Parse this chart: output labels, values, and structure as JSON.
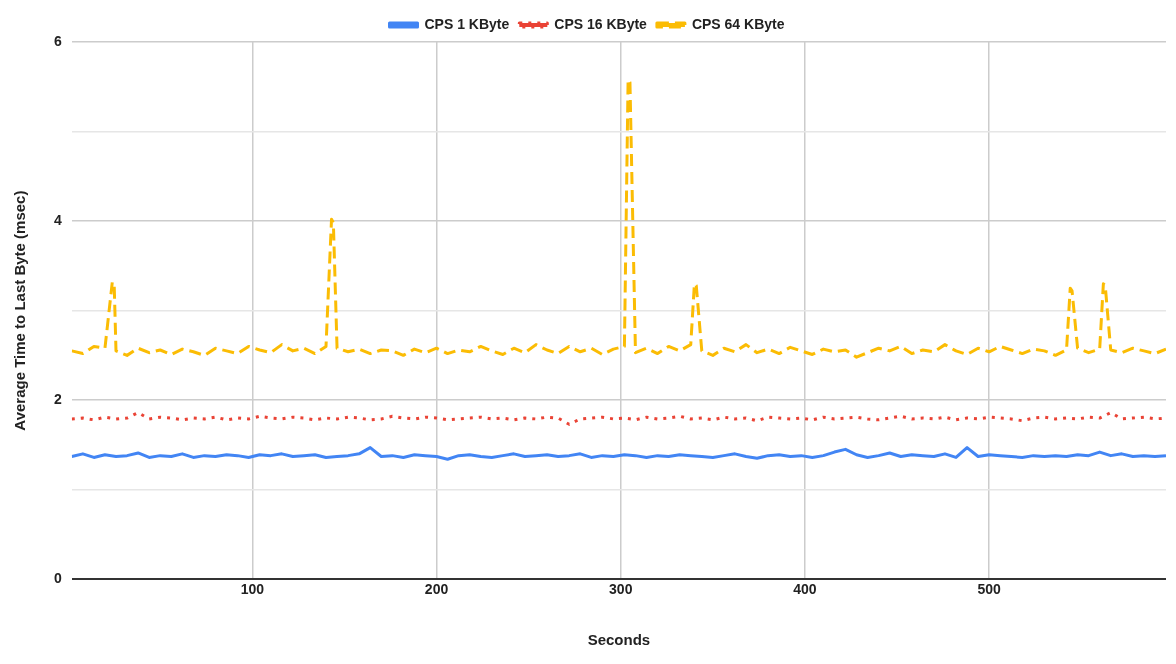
{
  "chart_data": {
    "type": "line",
    "xlabel": "Seconds",
    "ylabel": "Average Time to Last Byte (msec)",
    "x": [
      2,
      8,
      14,
      20,
      26,
      32,
      38,
      44,
      50,
      56,
      62,
      68,
      74,
      80,
      86,
      92,
      98,
      104,
      110,
      116,
      122,
      128,
      134,
      140,
      146,
      152,
      158,
      164,
      170,
      176,
      182,
      188,
      194,
      200,
      206,
      212,
      218,
      224,
      230,
      236,
      242,
      248,
      254,
      260,
      266,
      272,
      278,
      284,
      290,
      296,
      302,
      308,
      314,
      320,
      326,
      332,
      338,
      344,
      350,
      356,
      362,
      368,
      374,
      380,
      386,
      392,
      398,
      404,
      410,
      416,
      422,
      428,
      434,
      440,
      446,
      452,
      458,
      464,
      470,
      476,
      482,
      488,
      494,
      500,
      506,
      512,
      518,
      524,
      530,
      536,
      542,
      548,
      554,
      560,
      566,
      572,
      578,
      584,
      590,
      596
    ],
    "xlim": [
      2,
      596
    ],
    "xticks": [
      100,
      200,
      300,
      400,
      500
    ],
    "ylim": [
      0,
      6
    ],
    "yticks": [
      0,
      {
        "value": 1,
        "label": null
      },
      2,
      {
        "value": 3,
        "label": null
      },
      4,
      {
        "value": 5,
        "label": null
      },
      6
    ],
    "grid": true,
    "legend": "top",
    "marker": "none",
    "series": [
      {
        "name": "CPS 1 KByte",
        "color": "#4285f4",
        "line_style": "solid",
        "values": [
          1.37,
          1.4,
          1.36,
          1.39,
          1.37,
          1.38,
          1.41,
          1.36,
          1.38,
          1.37,
          1.4,
          1.36,
          1.38,
          1.37,
          1.39,
          1.38,
          1.36,
          1.39,
          1.38,
          1.4,
          1.37,
          1.38,
          1.39,
          1.36,
          1.37,
          1.38,
          1.4,
          1.47,
          1.37,
          1.38,
          1.36,
          1.39,
          1.38,
          1.37,
          1.34,
          1.38,
          1.39,
          1.37,
          1.36,
          1.38,
          1.4,
          1.37,
          1.38,
          1.39,
          1.37,
          1.38,
          1.4,
          1.36,
          1.38,
          1.37,
          1.39,
          1.38,
          1.36,
          1.38,
          1.37,
          1.39,
          1.38,
          1.37,
          1.36,
          1.38,
          1.4,
          1.37,
          1.35,
          1.38,
          1.39,
          1.37,
          1.38,
          1.36,
          1.38,
          1.42,
          1.45,
          1.39,
          1.36,
          1.38,
          1.41,
          1.37,
          1.39,
          1.38,
          1.37,
          1.4,
          1.36,
          1.47,
          1.37,
          1.39,
          1.38,
          1.37,
          1.36,
          1.38,
          1.37,
          1.38,
          1.37,
          1.39,
          1.38,
          1.42,
          1.38,
          1.4,
          1.37,
          1.38,
          1.37,
          1.38
        ]
      },
      {
        "name": "CPS 16 KByte",
        "color": "#ea4335",
        "line_style": "dotted",
        "values": [
          1.79,
          1.8,
          1.78,
          1.81,
          1.79,
          1.8,
          1.86,
          1.79,
          1.81,
          1.8,
          1.78,
          1.8,
          1.79,
          1.81,
          1.78,
          1.8,
          1.79,
          1.82,
          1.8,
          1.79,
          1.81,
          1.8,
          1.78,
          1.8,
          1.79,
          1.81,
          1.8,
          1.78,
          1.79,
          1.82,
          1.8,
          1.79,
          1.81,
          1.8,
          1.78,
          1.79,
          1.8,
          1.81,
          1.79,
          1.8,
          1.78,
          1.8,
          1.79,
          1.81,
          1.8,
          1.73,
          1.79,
          1.8,
          1.81,
          1.79,
          1.8,
          1.78,
          1.81,
          1.79,
          1.8,
          1.82,
          1.79,
          1.8,
          1.78,
          1.81,
          1.79,
          1.8,
          1.77,
          1.81,
          1.8,
          1.79,
          1.8,
          1.78,
          1.81,
          1.79,
          1.8,
          1.81,
          1.79,
          1.78,
          1.8,
          1.82,
          1.79,
          1.8,
          1.79,
          1.81,
          1.78,
          1.8,
          1.79,
          1.81,
          1.8,
          1.79,
          1.77,
          1.8,
          1.81,
          1.79,
          1.8,
          1.79,
          1.81,
          1.8,
          1.86,
          1.79,
          1.8,
          1.81,
          1.79,
          1.8
        ]
      },
      {
        "name": "CPS 64 KByte",
        "color": "#fbbc04",
        "line_style": "dashed",
        "x": [
          2,
          8,
          14,
          20,
          24,
          25,
          26,
          32,
          38,
          44,
          50,
          56,
          62,
          68,
          74,
          80,
          86,
          92,
          98,
          104,
          110,
          116,
          122,
          128,
          134,
          140,
          143,
          144,
          146,
          152,
          158,
          164,
          170,
          176,
          182,
          188,
          194,
          200,
          206,
          212,
          218,
          224,
          230,
          236,
          242,
          248,
          254,
          260,
          266,
          272,
          278,
          284,
          290,
          296,
          302,
          304,
          305,
          308,
          314,
          320,
          326,
          332,
          338,
          340,
          341,
          344,
          350,
          356,
          362,
          368,
          374,
          380,
          386,
          392,
          398,
          404,
          410,
          416,
          422,
          428,
          434,
          440,
          446,
          452,
          458,
          464,
          470,
          476,
          482,
          488,
          494,
          500,
          506,
          512,
          518,
          524,
          530,
          536,
          542,
          544,
          545,
          548,
          554,
          560,
          562,
          563,
          566,
          572,
          578,
          584,
          590,
          596
        ],
        "values": [
          2.55,
          2.52,
          2.6,
          2.58,
          3.32,
          3.3,
          2.55,
          2.5,
          2.58,
          2.53,
          2.56,
          2.51,
          2.57,
          2.54,
          2.5,
          2.58,
          2.55,
          2.52,
          2.6,
          2.56,
          2.53,
          2.62,
          2.55,
          2.58,
          2.52,
          2.6,
          4.02,
          3.98,
          2.58,
          2.54,
          2.57,
          2.52,
          2.56,
          2.55,
          2.5,
          2.57,
          2.53,
          2.58,
          2.52,
          2.56,
          2.54,
          2.6,
          2.55,
          2.51,
          2.58,
          2.53,
          2.62,
          2.56,
          2.52,
          2.6,
          2.54,
          2.58,
          2.51,
          2.57,
          2.6,
          5.58,
          5.55,
          2.53,
          2.58,
          2.52,
          2.6,
          2.55,
          2.62,
          3.3,
          3.28,
          2.55,
          2.5,
          2.58,
          2.54,
          2.62,
          2.53,
          2.57,
          2.52,
          2.59,
          2.55,
          2.51,
          2.57,
          2.54,
          2.56,
          2.48,
          2.53,
          2.58,
          2.55,
          2.6,
          2.52,
          2.56,
          2.54,
          2.62,
          2.55,
          2.51,
          2.58,
          2.54,
          2.6,
          2.56,
          2.52,
          2.57,
          2.55,
          2.5,
          2.56,
          3.25,
          3.22,
          2.58,
          2.53,
          2.57,
          3.3,
          3.28,
          2.56,
          2.53,
          2.58,
          2.55,
          2.52,
          2.57
        ]
      }
    ]
  }
}
